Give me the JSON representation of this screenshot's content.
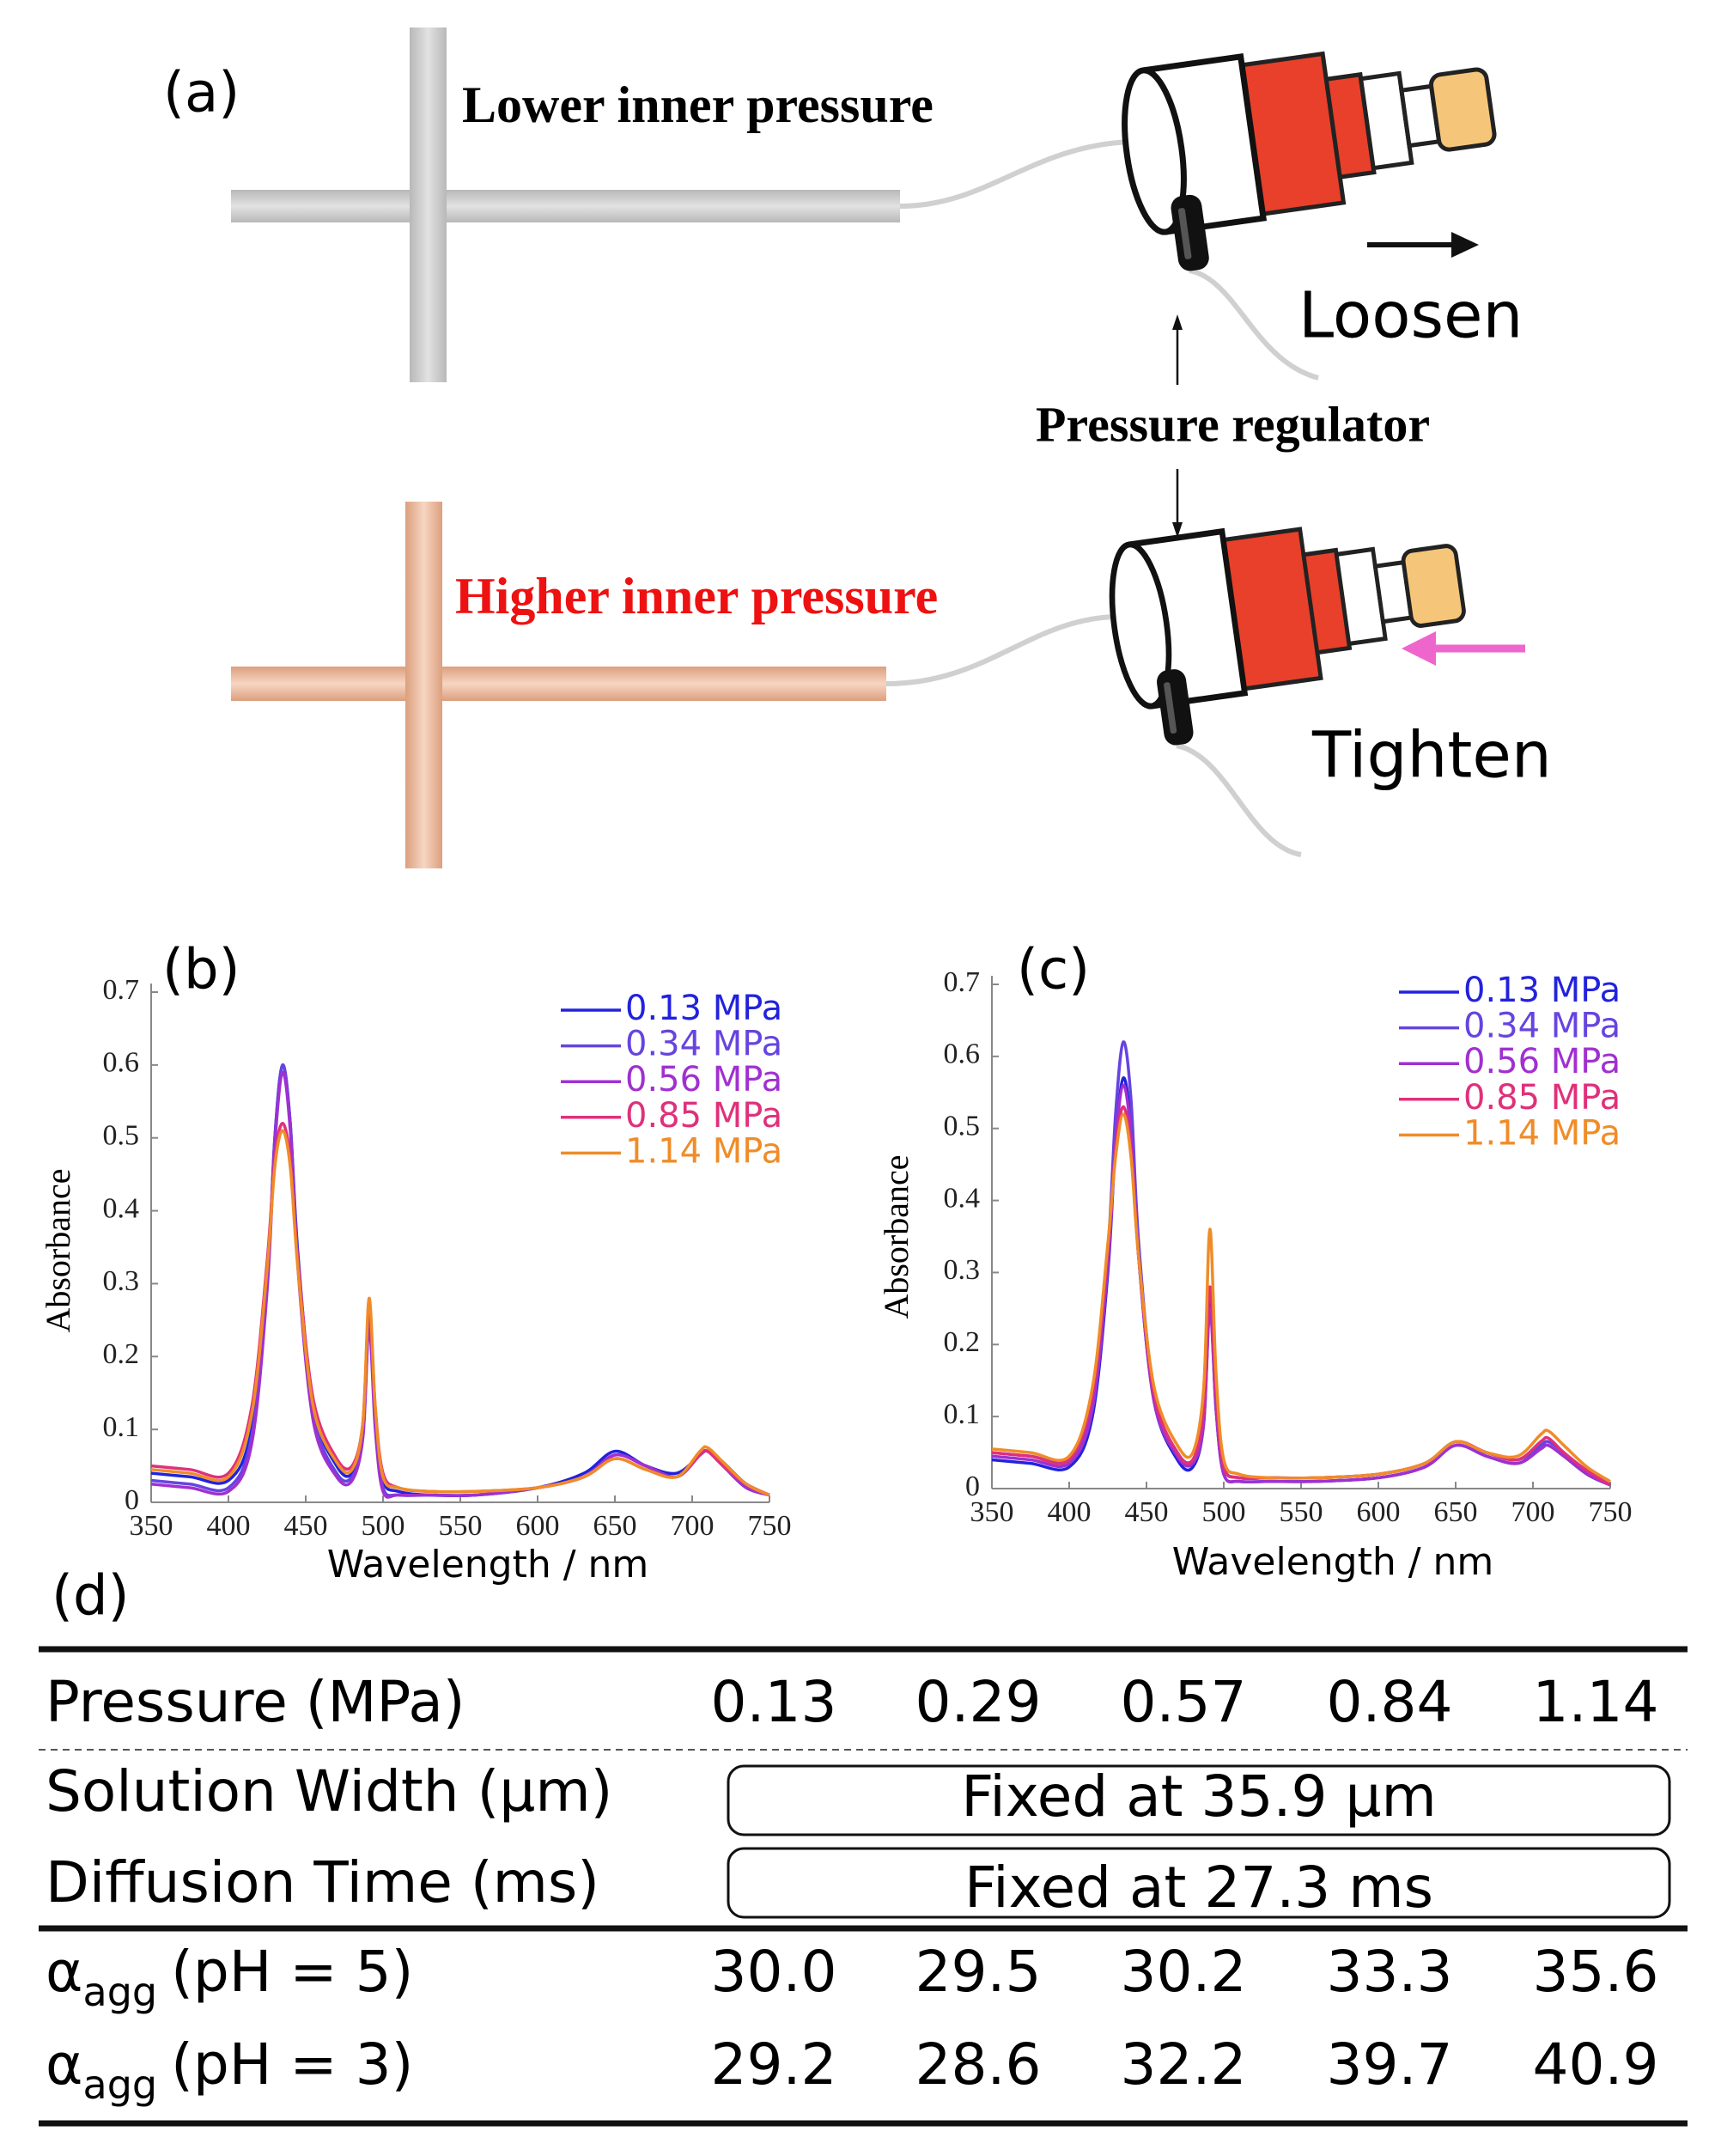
{
  "panel_a": {
    "label": "(a)",
    "lower": "Lower inner pressure",
    "higher": "Higher inner pressure",
    "regulator": "Pressure regulator",
    "loosen": "Loosen",
    "tighten": "Tighten"
  },
  "chart_data": [
    {
      "type": "line",
      "label": "(b)",
      "xlabel": "Wavelength / nm",
      "ylabel": "Absorbance",
      "x": [
        350,
        375,
        400,
        415,
        425,
        430,
        435,
        440,
        445,
        455,
        470,
        480,
        487,
        491,
        495,
        500,
        510,
        530,
        560,
        600,
        630,
        650,
        670,
        690,
        705,
        710,
        720,
        735,
        750
      ],
      "xlim": [
        350,
        750
      ],
      "xticks": [
        350,
        400,
        450,
        500,
        550,
        600,
        650,
        700,
        750
      ],
      "ylim": [
        0,
        0.7
      ],
      "yticks": [
        0,
        0.1,
        0.2,
        0.3,
        0.4,
        0.5,
        0.6,
        0.7
      ],
      "legend": "upper right",
      "series": [
        {
          "name": "0.13 MPa",
          "color": "#2222dd",
          "values": [
            0.04,
            0.035,
            0.03,
            0.1,
            0.3,
            0.5,
            0.6,
            0.52,
            0.34,
            0.13,
            0.05,
            0.04,
            0.1,
            0.25,
            0.12,
            0.03,
            0.015,
            0.01,
            0.01,
            0.02,
            0.04,
            0.07,
            0.05,
            0.04,
            0.065,
            0.07,
            0.055,
            0.025,
            0.01
          ]
        },
        {
          "name": "0.34 MPa",
          "color": "#6644e0",
          "values": [
            0.03,
            0.025,
            0.02,
            0.09,
            0.3,
            0.5,
            0.6,
            0.52,
            0.33,
            0.12,
            0.04,
            0.035,
            0.09,
            0.25,
            0.11,
            0.02,
            0.01,
            0.01,
            0.01,
            0.02,
            0.035,
            0.065,
            0.05,
            0.035,
            0.065,
            0.07,
            0.05,
            0.02,
            0.01
          ]
        },
        {
          "name": "0.56 MPa",
          "color": "#a030d0",
          "values": [
            0.025,
            0.02,
            0.015,
            0.08,
            0.29,
            0.49,
            0.59,
            0.51,
            0.32,
            0.11,
            0.035,
            0.03,
            0.09,
            0.24,
            0.1,
            0.015,
            0.01,
            0.01,
            0.01,
            0.02,
            0.035,
            0.065,
            0.05,
            0.035,
            0.065,
            0.07,
            0.05,
            0.02,
            0.01
          ]
        },
        {
          "name": "0.85 MPa",
          "color": "#e0307a",
          "values": [
            0.05,
            0.045,
            0.04,
            0.13,
            0.33,
            0.47,
            0.52,
            0.47,
            0.33,
            0.14,
            0.06,
            0.05,
            0.11,
            0.27,
            0.13,
            0.04,
            0.02,
            0.015,
            0.015,
            0.02,
            0.035,
            0.06,
            0.045,
            0.035,
            0.065,
            0.07,
            0.05,
            0.025,
            0.01
          ]
        },
        {
          "name": "1.14 MPa",
          "color": "#f08c28",
          "values": [
            0.045,
            0.04,
            0.035,
            0.12,
            0.32,
            0.46,
            0.51,
            0.46,
            0.32,
            0.13,
            0.055,
            0.045,
            0.11,
            0.28,
            0.13,
            0.035,
            0.02,
            0.015,
            0.015,
            0.02,
            0.035,
            0.06,
            0.045,
            0.035,
            0.07,
            0.075,
            0.055,
            0.025,
            0.01
          ]
        }
      ]
    },
    {
      "type": "line",
      "label": "(c)",
      "xlabel": "Wavelength / nm",
      "ylabel": "Absorbance",
      "x": [
        350,
        375,
        400,
        415,
        425,
        430,
        435,
        440,
        445,
        455,
        470,
        480,
        487,
        491,
        495,
        500,
        510,
        530,
        560,
        600,
        630,
        650,
        670,
        690,
        705,
        710,
        720,
        735,
        750
      ],
      "xlim": [
        350,
        750
      ],
      "xticks": [
        350,
        400,
        450,
        500,
        550,
        600,
        650,
        700,
        750
      ],
      "ylim": [
        0,
        0.7
      ],
      "yticks": [
        0,
        0.1,
        0.2,
        0.3,
        0.4,
        0.5,
        0.6,
        0.7
      ],
      "legend": "upper right",
      "series": [
        {
          "name": "0.13 MPa",
          "color": "#2222dd",
          "values": [
            0.04,
            0.035,
            0.03,
            0.1,
            0.3,
            0.48,
            0.57,
            0.5,
            0.32,
            0.12,
            0.04,
            0.03,
            0.09,
            0.26,
            0.11,
            0.02,
            0.01,
            0.01,
            0.01,
            0.015,
            0.03,
            0.06,
            0.045,
            0.035,
            0.055,
            0.06,
            0.045,
            0.02,
            0.005
          ]
        },
        {
          "name": "0.34 MPa",
          "color": "#6644e0",
          "values": [
            0.05,
            0.045,
            0.04,
            0.12,
            0.33,
            0.52,
            0.62,
            0.54,
            0.34,
            0.13,
            0.05,
            0.04,
            0.1,
            0.25,
            0.12,
            0.03,
            0.015,
            0.015,
            0.015,
            0.02,
            0.035,
            0.065,
            0.05,
            0.04,
            0.06,
            0.065,
            0.05,
            0.02,
            0.005
          ]
        },
        {
          "name": "0.56 MPa",
          "color": "#a030d0",
          "values": [
            0.045,
            0.04,
            0.035,
            0.11,
            0.31,
            0.48,
            0.56,
            0.49,
            0.32,
            0.12,
            0.045,
            0.035,
            0.09,
            0.25,
            0.11,
            0.02,
            0.01,
            0.01,
            0.01,
            0.015,
            0.03,
            0.06,
            0.045,
            0.035,
            0.055,
            0.06,
            0.045,
            0.02,
            0.005
          ]
        },
        {
          "name": "0.85 MPa",
          "color": "#e0307a",
          "values": [
            0.05,
            0.045,
            0.04,
            0.13,
            0.33,
            0.47,
            0.53,
            0.47,
            0.32,
            0.13,
            0.05,
            0.04,
            0.11,
            0.28,
            0.13,
            0.03,
            0.015,
            0.015,
            0.015,
            0.02,
            0.035,
            0.065,
            0.05,
            0.04,
            0.065,
            0.07,
            0.05,
            0.025,
            0.005
          ]
        },
        {
          "name": "1.14 MPa",
          "color": "#f08c28",
          "values": [
            0.055,
            0.05,
            0.045,
            0.14,
            0.34,
            0.46,
            0.52,
            0.46,
            0.32,
            0.14,
            0.06,
            0.05,
            0.14,
            0.36,
            0.16,
            0.04,
            0.02,
            0.015,
            0.015,
            0.02,
            0.035,
            0.065,
            0.05,
            0.045,
            0.075,
            0.08,
            0.06,
            0.03,
            0.01
          ]
        }
      ]
    }
  ],
  "table": {
    "label": "(d)",
    "header": {
      "label": "Pressure (MPa)",
      "values": [
        "0.13",
        "0.29",
        "0.57",
        "0.84",
        "1.14"
      ]
    },
    "fixed_rows": [
      {
        "label": "Solution Width (μm)",
        "value": "Fixed at 35.9 μm"
      },
      {
        "label": "Diffusion Time (ms)",
        "value": "Fixed at 27.3 ms"
      }
    ],
    "alpha_rows": [
      {
        "symbol": "α",
        "sub": "agg",
        "rest": "(pH = 5)",
        "values": [
          "30.0",
          "29.5",
          "30.2",
          "33.3",
          "35.6"
        ]
      },
      {
        "symbol": "α",
        "sub": "agg",
        "rest": "(pH = 3)",
        "values": [
          "29.2",
          "28.6",
          "32.2",
          "39.7",
          "40.9"
        ]
      }
    ]
  }
}
